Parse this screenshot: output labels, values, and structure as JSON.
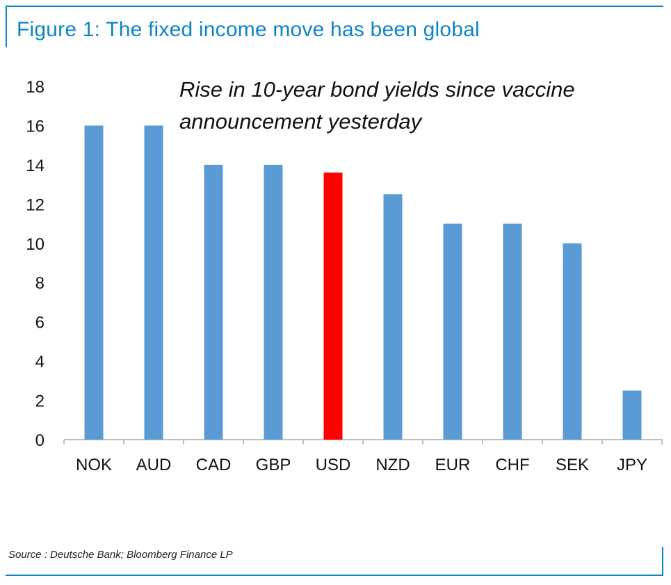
{
  "figure": {
    "title": "Figure 1: The fixed income move has been global",
    "source": "Source : Deutsche Bank; Bloomberg Finance LP",
    "accent_color": "#0c85c7"
  },
  "chart_data": {
    "type": "bar",
    "categories": [
      "NOK",
      "AUD",
      "CAD",
      "GBP",
      "USD",
      "NZD",
      "EUR",
      "CHF",
      "SEK",
      "JPY"
    ],
    "values": [
      16,
      16,
      14,
      14,
      13.6,
      12.5,
      11,
      11,
      10,
      2.5
    ],
    "bar_colors": [
      "#5b9bd5",
      "#5b9bd5",
      "#5b9bd5",
      "#5b9bd5",
      "#ff0000",
      "#5b9bd5",
      "#5b9bd5",
      "#5b9bd5",
      "#5b9bd5",
      "#5b9bd5"
    ],
    "ylim": [
      0,
      18
    ],
    "yticks": [
      0,
      2,
      4,
      6,
      8,
      10,
      12,
      14,
      16,
      18
    ],
    "annotation_lines": [
      "Rise in 10-year bond yields since vaccine",
      "announcement yesterday"
    ],
    "xlabel": "",
    "ylabel": "",
    "grid": false,
    "legend": "none"
  }
}
